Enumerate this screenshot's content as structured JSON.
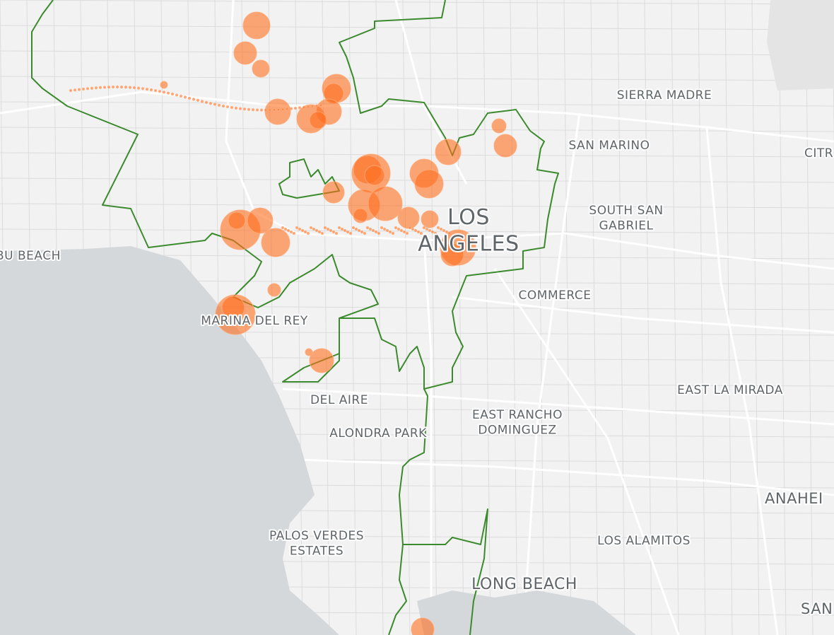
{
  "map": {
    "labels": [
      {
        "lines": [
          "SIERRA MADRE"
        ]
      },
      {
        "lines": [
          "SAN MARINO"
        ]
      },
      {
        "lines": [
          "CITR"
        ]
      },
      {
        "lines": [
          "SOUTH SAN",
          "GABRIEL"
        ]
      },
      {
        "lines": [
          "LOS",
          "ANGELES"
        ]
      },
      {
        "lines": [
          "BU BEACH"
        ]
      },
      {
        "lines": [
          "COMMERCE"
        ]
      },
      {
        "lines": [
          "MARINA DEL REY"
        ]
      },
      {
        "lines": [
          "EAST LA MIRADA"
        ]
      },
      {
        "lines": [
          "DEL AIRE"
        ]
      },
      {
        "lines": [
          "EAST RANCHO",
          "DOMINGUEZ"
        ]
      },
      {
        "lines": [
          "ALONDRA PARK"
        ]
      },
      {
        "lines": [
          "ANAHEI"
        ]
      },
      {
        "lines": [
          "PALOS VERDES",
          "ESTATES"
        ]
      },
      {
        "lines": [
          "LOS ALAMITOS"
        ]
      },
      {
        "lines": [
          "LONG BEACH"
        ]
      },
      {
        "lines": [
          "SAN"
        ]
      }
    ]
  }
}
